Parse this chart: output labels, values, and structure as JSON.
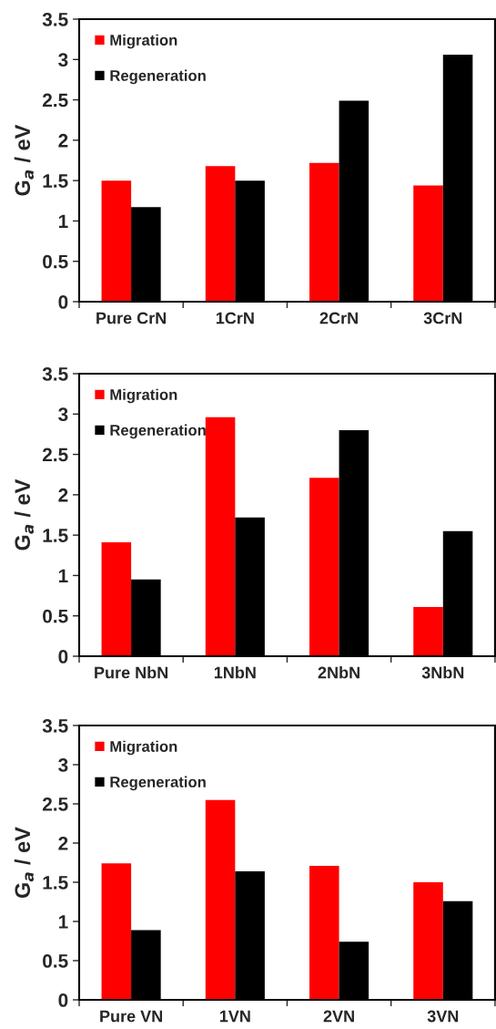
{
  "chart_data": [
    {
      "type": "bar",
      "ylabel": "G$_{a}$ / eV",
      "categories": [
        "Pure CrN",
        "1CrN",
        "2CrN",
        "3CrN"
      ],
      "ylim": [
        0,
        3.5
      ],
      "yticks": [
        0,
        0.5,
        1,
        1.5,
        2,
        2.5,
        3,
        3.5
      ],
      "legend": "top left",
      "grid": false,
      "series": [
        {
          "name": "Migration",
          "color": "#ff0000",
          "values": [
            1.5,
            1.68,
            1.72,
            1.44
          ]
        },
        {
          "name": "Regeneration",
          "color": "#000000",
          "values": [
            1.17,
            1.5,
            2.49,
            3.06
          ]
        }
      ]
    },
    {
      "type": "bar",
      "ylabel": "G$_{a}$ / eV",
      "categories": [
        "Pure NbN",
        "1NbN",
        "2NbN",
        "3NbN"
      ],
      "ylim": [
        0,
        3.5
      ],
      "yticks": [
        0,
        0.5,
        1,
        1.5,
        2,
        2.5,
        3,
        3.5
      ],
      "legend": "top left",
      "grid": false,
      "series": [
        {
          "name": "Migration",
          "color": "#ff0000",
          "values": [
            1.41,
            2.96,
            2.21,
            0.61
          ]
        },
        {
          "name": "Regeneration",
          "color": "#000000",
          "values": [
            0.95,
            1.72,
            2.8,
            1.55
          ]
        }
      ]
    },
    {
      "type": "bar",
      "ylabel": "G$_{a}$ / eV",
      "categories": [
        "Pure VN",
        "1VN",
        "2VN",
        "3VN"
      ],
      "ylim": [
        0,
        3.5
      ],
      "yticks": [
        0,
        0.5,
        1,
        1.5,
        2,
        2.5,
        3,
        3.5
      ],
      "legend": "top left",
      "grid": false,
      "series": [
        {
          "name": "Migration",
          "color": "#ff0000",
          "values": [
            1.74,
            2.55,
            1.71,
            1.5
          ]
        },
        {
          "name": "Regeneration",
          "color": "#000000",
          "values": [
            0.89,
            1.64,
            0.74,
            1.26
          ]
        }
      ]
    }
  ]
}
